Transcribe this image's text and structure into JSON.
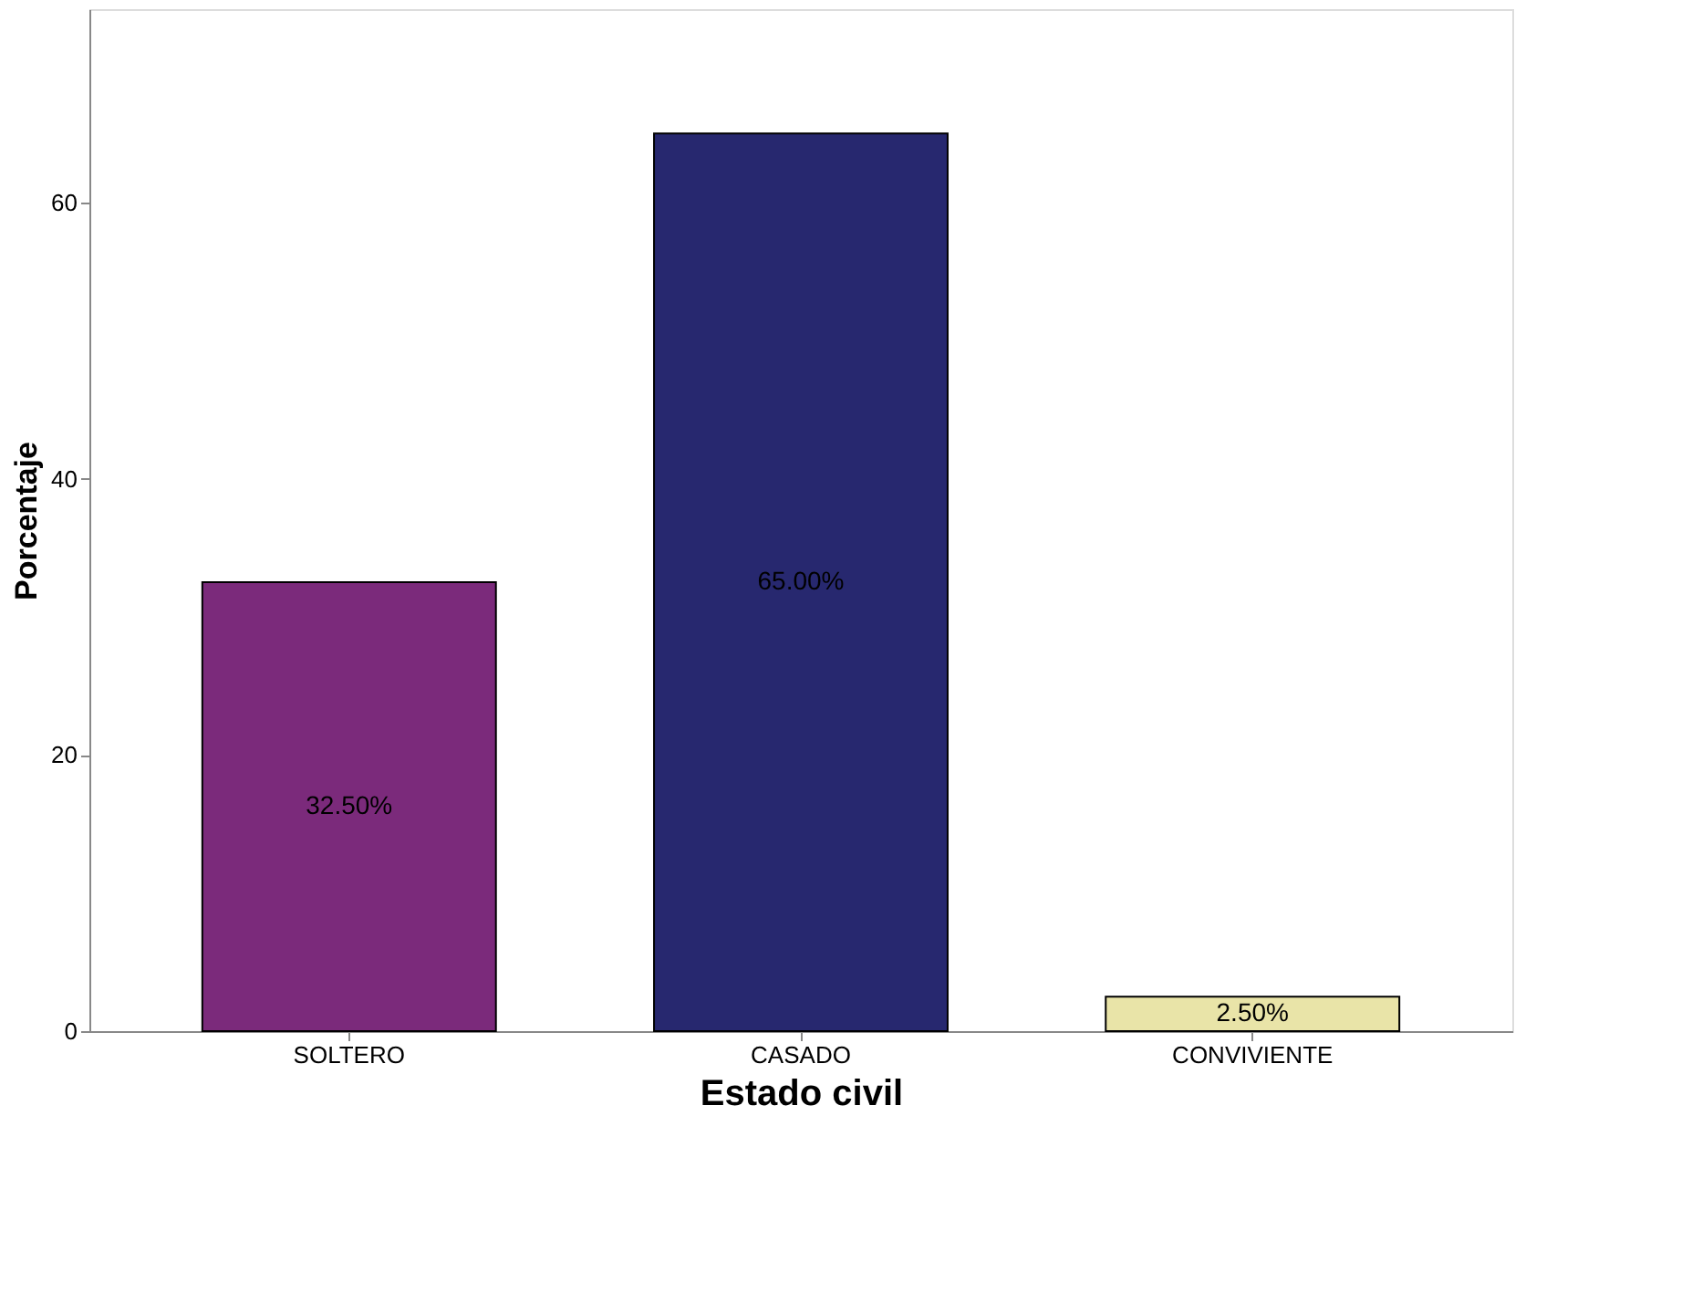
{
  "chart_data": {
    "type": "bar",
    "xlabel": "Estado civil",
    "ylabel": "Porcentaje",
    "categories": [
      "SOLTERO",
      "CASADO",
      "CONVIVIENTE"
    ],
    "values": [
      32.5,
      65.0,
      2.5
    ],
    "colors": [
      "#7b2a7b",
      "#27286f",
      "#e9e4a8"
    ],
    "value_labels": [
      "32.50%",
      "65.00%",
      "2.50%"
    ],
    "ylim": [
      0,
      74
    ],
    "yticks": [
      0,
      20,
      40,
      60
    ],
    "grid": false,
    "legend": false
  }
}
